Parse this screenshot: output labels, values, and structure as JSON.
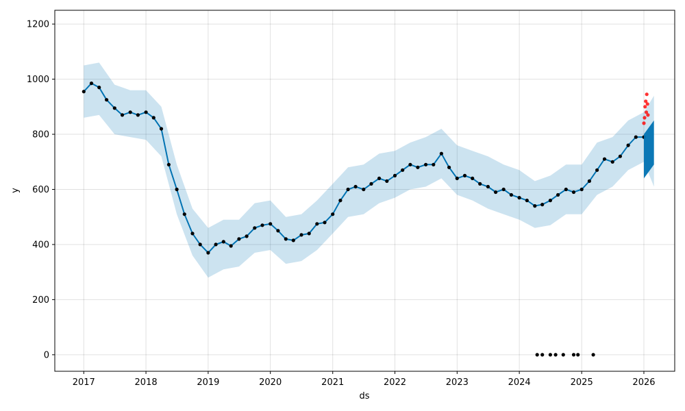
{
  "chart_data": {
    "type": "line",
    "xlabel": "ds",
    "ylabel": "y",
    "xlim": [
      "2016-07-15",
      "2026-07-01"
    ],
    "ylim": [
      -60,
      1250
    ],
    "x_ticks": [
      "2017",
      "2018",
      "2019",
      "2020",
      "2021",
      "2022",
      "2023",
      "2024",
      "2025",
      "2026"
    ],
    "y_ticks": [
      0,
      200,
      400,
      600,
      800,
      1000,
      1200
    ],
    "grid": true,
    "legend": "none",
    "colors": {
      "forecast": "#0072B2",
      "band": "#0072B2",
      "observed": "#000000",
      "recent": "#ff0000"
    },
    "series": [
      {
        "role": "forecast",
        "x": [
          "2017-01-01",
          "2017-02-15",
          "2017-04-01",
          "2017-05-15",
          "2017-07-01",
          "2017-08-15",
          "2017-10-01",
          "2017-11-15",
          "2018-01-01",
          "2018-02-15",
          "2018-04-01",
          "2018-05-15",
          "2018-07-01",
          "2018-08-15",
          "2018-10-01",
          "2018-11-15",
          "2019-01-01",
          "2019-02-15",
          "2019-04-01",
          "2019-05-15",
          "2019-07-01",
          "2019-08-15",
          "2019-10-01",
          "2019-11-15",
          "2020-01-01",
          "2020-02-15",
          "2020-04-01",
          "2020-05-15",
          "2020-07-01",
          "2020-08-15",
          "2020-10-01",
          "2020-11-15",
          "2021-01-01",
          "2021-02-15",
          "2021-04-01",
          "2021-05-15",
          "2021-07-01",
          "2021-08-15",
          "2021-10-01",
          "2021-11-15",
          "2022-01-01",
          "2022-02-15",
          "2022-04-01",
          "2022-05-15",
          "2022-07-01",
          "2022-08-15",
          "2022-10-01",
          "2022-11-15",
          "2023-01-01",
          "2023-02-15",
          "2023-04-01",
          "2023-05-15",
          "2023-07-01",
          "2023-08-15",
          "2023-10-01",
          "2023-11-15",
          "2024-01-01",
          "2024-02-15",
          "2024-04-01",
          "2024-05-15",
          "2024-07-01",
          "2024-08-15",
          "2024-10-01",
          "2024-11-15",
          "2025-01-01",
          "2025-02-15",
          "2025-04-01",
          "2025-05-15",
          "2025-07-01",
          "2025-08-15",
          "2025-10-01",
          "2025-11-15",
          "2026-01-01"
        ],
        "y": [
          955,
          985,
          970,
          925,
          895,
          870,
          880,
          870,
          880,
          860,
          820,
          690,
          600,
          510,
          440,
          400,
          370,
          400,
          410,
          395,
          420,
          430,
          460,
          470,
          475,
          450,
          420,
          415,
          435,
          440,
          475,
          480,
          510,
          560,
          600,
          610,
          600,
          620,
          640,
          630,
          650,
          670,
          690,
          680,
          690,
          690,
          730,
          680,
          640,
          650,
          640,
          620,
          610,
          590,
          600,
          580,
          570,
          560,
          540,
          545,
          560,
          580,
          600,
          590,
          600,
          630,
          670,
          710,
          700,
          720,
          760,
          790,
          790
        ]
      }
    ],
    "band": {
      "x": [
        "2017-01-01",
        "2017-04-01",
        "2017-07-01",
        "2017-10-01",
        "2018-01-01",
        "2018-04-01",
        "2018-07-01",
        "2018-10-01",
        "2019-01-01",
        "2019-04-01",
        "2019-07-01",
        "2019-10-01",
        "2020-01-01",
        "2020-04-01",
        "2020-07-01",
        "2020-10-01",
        "2021-01-01",
        "2021-04-01",
        "2021-07-01",
        "2021-10-01",
        "2022-01-01",
        "2022-04-01",
        "2022-07-01",
        "2022-10-01",
        "2023-01-01",
        "2023-04-01",
        "2023-07-01",
        "2023-10-01",
        "2024-01-01",
        "2024-04-01",
        "2024-07-01",
        "2024-10-01",
        "2025-01-01",
        "2025-04-01",
        "2025-07-01",
        "2025-10-01",
        "2026-01-01",
        "2026-03-01"
      ],
      "lower": [
        860,
        870,
        800,
        790,
        780,
        720,
        510,
        360,
        280,
        310,
        320,
        370,
        380,
        330,
        340,
        380,
        440,
        500,
        510,
        550,
        570,
        600,
        610,
        640,
        580,
        560,
        530,
        510,
        490,
        460,
        470,
        510,
        510,
        580,
        610,
        670,
        700,
        610
      ],
      "upper": [
        1050,
        1060,
        980,
        960,
        960,
        900,
        690,
        530,
        460,
        490,
        490,
        550,
        560,
        500,
        510,
        560,
        620,
        680,
        690,
        730,
        740,
        770,
        790,
        820,
        760,
        740,
        720,
        690,
        670,
        630,
        650,
        690,
        690,
        770,
        790,
        850,
        880,
        940
      ]
    },
    "observed_outliers": {
      "x": [
        "2024-04-15",
        "2024-05-15",
        "2024-07-01",
        "2024-08-01",
        "2024-09-15",
        "2024-11-15",
        "2024-12-10",
        "2025-03-10"
      ],
      "y": [
        0,
        0,
        0,
        0,
        0,
        0,
        0,
        0
      ]
    },
    "recent_points": {
      "x": [
        "2026-01-01",
        "2026-01-05",
        "2026-01-08",
        "2026-01-12",
        "2026-01-15",
        "2026-01-18",
        "2026-01-22",
        "2026-01-25"
      ],
      "y": [
        840,
        860,
        900,
        920,
        880,
        945,
        910,
        870
      ]
    },
    "future_forecast": {
      "x": [
        "2026-01-01",
        "2026-03-01"
      ],
      "lower": [
        640,
        690
      ],
      "upper": [
        800,
        850
      ]
    }
  }
}
